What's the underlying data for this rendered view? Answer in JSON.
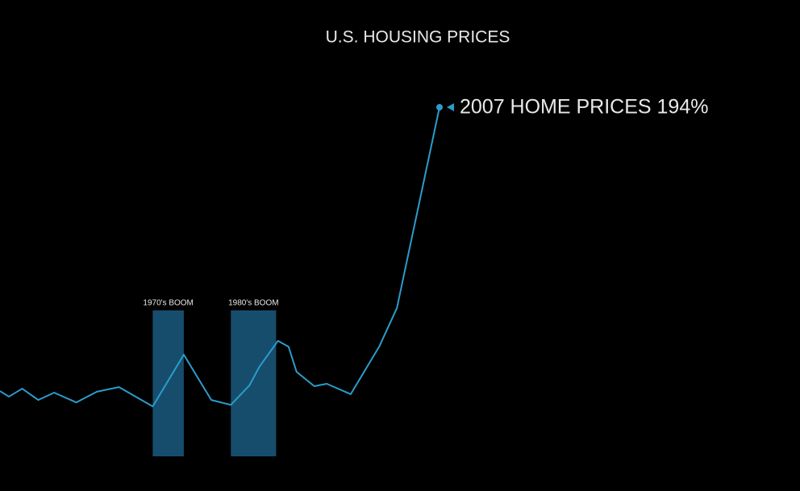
{
  "chart_data": {
    "type": "line",
    "title": "U.S. HOUSING PRICES",
    "annotation": "2007 HOME PRICES 194%",
    "x": [
      1957.5,
      1958.5,
      1960,
      1961.8,
      1963.6,
      1966.1,
      1968.4,
      1970.9,
      1974.7,
      1978.2,
      1981.3,
      1983.5,
      1985.6,
      1986.7,
      1988.8,
      1990,
      1990.9,
      1992.9,
      1994.3,
      1997,
      2000.2,
      2002.2,
      2007
    ],
    "values": [
      101.3,
      99.5,
      102.1,
      98.4,
      100.8,
      97.6,
      101.1,
      102.6,
      96.3,
      113.2,
      98.4,
      96.8,
      103.2,
      109.2,
      117.7,
      115.8,
      107.6,
      102.9,
      103.7,
      100.3,
      115.8,
      128.4,
      194
    ],
    "color": "#2b9ccb",
    "xlim": [
      1957.5,
      2007
    ],
    "ylim": [
      80,
      194
    ],
    "bands": [
      {
        "label": "1970's BOOM",
        "x": [
          1974.7,
          1978.2
        ],
        "color": "#174d6c"
      },
      {
        "label": "1980's BOOM",
        "x": [
          1983.5,
          1988.6
        ],
        "color": "#174d6c"
      }
    ]
  }
}
